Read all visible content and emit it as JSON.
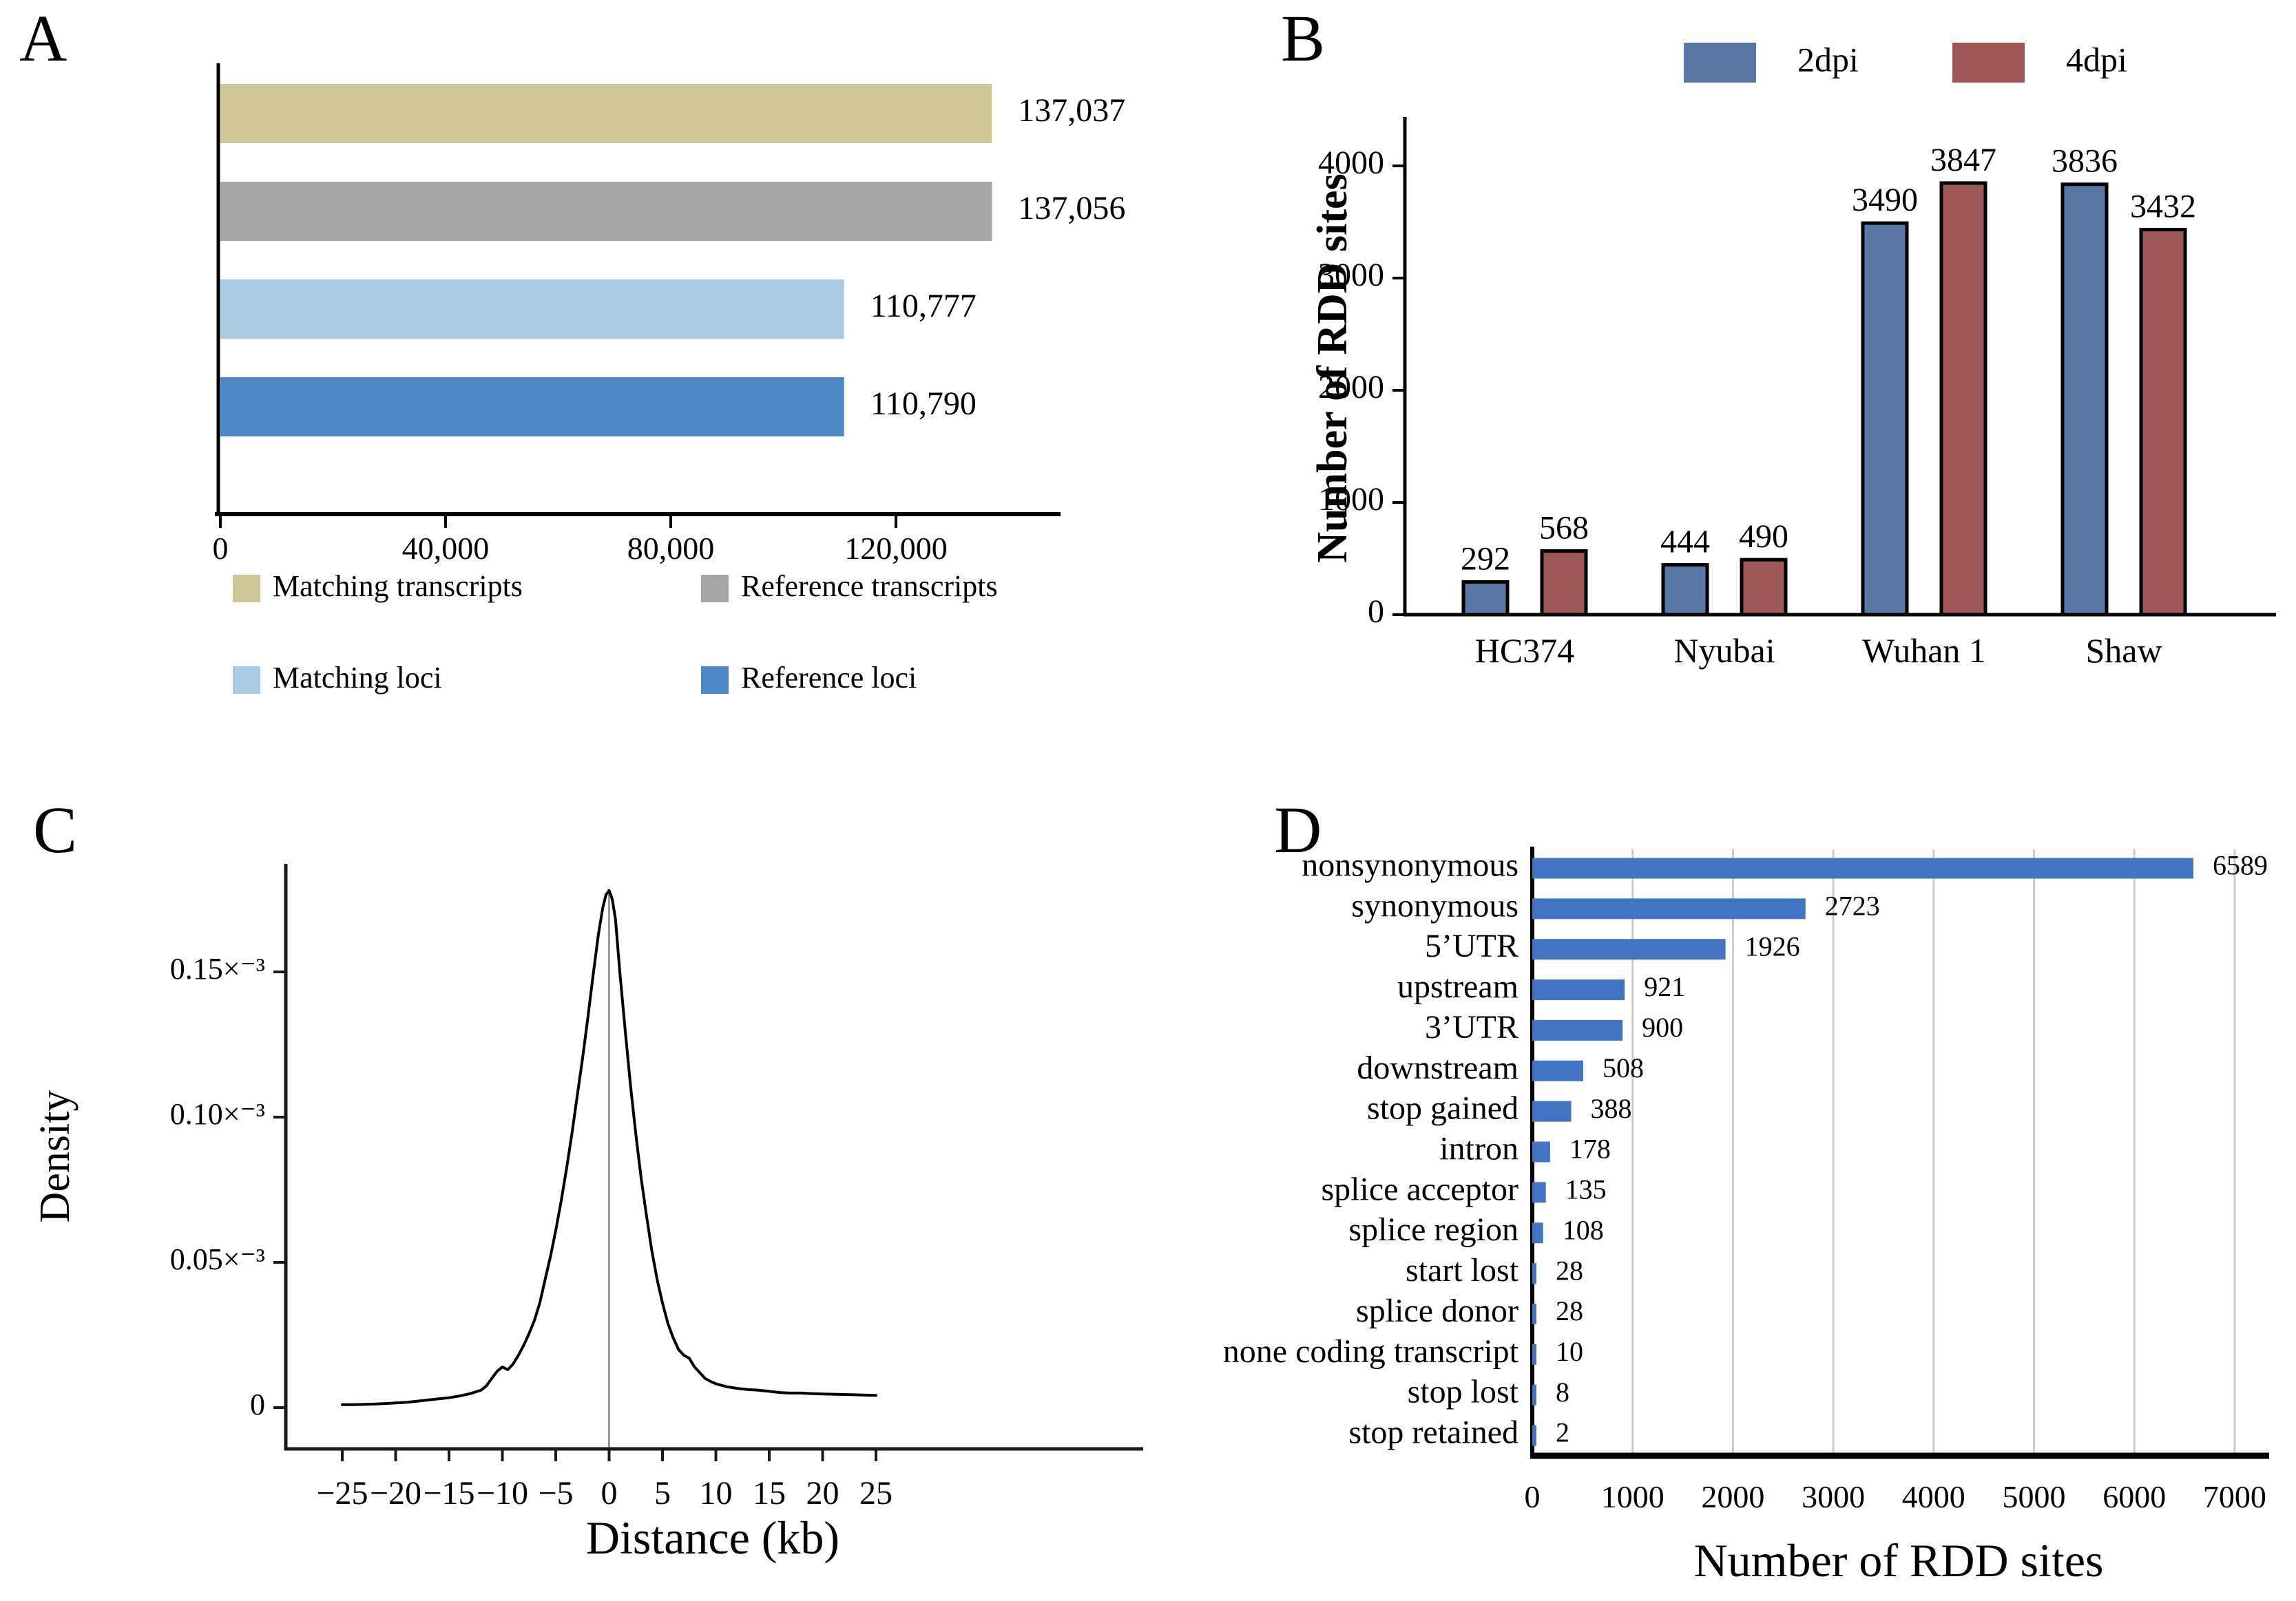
{
  "figure": {
    "panel_a": {
      "label": "A",
      "chart_data": {
        "type": "bar",
        "orientation": "horizontal",
        "categories": [
          "Matching transcripts",
          "Reference transcripts",
          "Matching loci",
          "Reference loci"
        ],
        "values": [
          137037,
          137056,
          110777,
          110790
        ],
        "value_labels": [
          "137,037",
          "137,056",
          "110,777",
          "110,790"
        ],
        "colors": [
          "#cec697",
          "#a6a6a6",
          "#a9cbe2",
          "#4e88c4"
        ],
        "x_ticks": [
          0,
          40000,
          80000,
          120000
        ],
        "x_tick_labels": [
          "0",
          "40,000",
          "80,000",
          "120,000"
        ],
        "xlim": [
          0,
          148000
        ],
        "grid": false
      },
      "legend": [
        {
          "label": "Matching transcripts",
          "color": "#cec697"
        },
        {
          "label": "Reference transcripts",
          "color": "#a6a6a6"
        },
        {
          "label": "Matching loci",
          "color": "#a9cbe2"
        },
        {
          "label": "Reference loci",
          "color": "#4e88c4"
        }
      ]
    },
    "panel_b": {
      "label": "B",
      "ylabel": "Number of RDD sites",
      "legend": [
        {
          "label": "2dpi",
          "color": "#5a78a6"
        },
        {
          "label": "4dpi",
          "color": "#9d5757"
        }
      ],
      "chart_data": {
        "type": "bar",
        "grouped": true,
        "categories": [
          "HC374",
          "Nyubai",
          "Wuhan 1",
          "Shaw"
        ],
        "series": [
          {
            "name": "2dpi",
            "color": "#5a78a6",
            "values": [
              292,
              444,
              3490,
              3836
            ]
          },
          {
            "name": "4dpi",
            "color": "#9d5757",
            "values": [
              568,
              490,
              3847,
              3432
            ]
          }
        ],
        "value_labels": {
          "2dpi": [
            "292",
            "444",
            "3490",
            "3836"
          ],
          "4dpi": [
            "568",
            "490",
            "3847",
            "3432"
          ]
        },
        "y_ticks": [
          0,
          1000,
          2000,
          3000,
          4000
        ],
        "y_tick_labels": [
          "0",
          "1000",
          "2000",
          "3000",
          "4000"
        ],
        "ylim": [
          0,
          4400
        ],
        "grid": false
      }
    },
    "panel_c": {
      "label": "C",
      "ylabel": "Density",
      "xlabel": "Distance (kb)",
      "chart_data": {
        "type": "line",
        "line_color": "#000000",
        "zero_line_color": "#9a9a9a",
        "zero_marker_x": 0,
        "xlim": [
          -25,
          25
        ],
        "x_ticks": [
          -25,
          -20,
          -15,
          -10,
          -5,
          0,
          5,
          10,
          15,
          20,
          25
        ],
        "x_tick_labels": [
          "−25",
          "−20",
          "−15",
          "−10",
          "−5",
          "0",
          "5",
          "10",
          "15",
          "20",
          "25"
        ],
        "y_tick_values": [
          0,
          0.05,
          0.1,
          0.15
        ],
        "y_tick_labels": [
          "0",
          "0.05×⁻³",
          "0.10×⁻³",
          "0.15×⁻³"
        ],
        "points": [
          [
            -25,
            0.001
          ],
          [
            -24,
            0.001
          ],
          [
            -23,
            0.0011
          ],
          [
            -22,
            0.0012
          ],
          [
            -21,
            0.0014
          ],
          [
            -20,
            0.0016
          ],
          [
            -19,
            0.0018
          ],
          [
            -18,
            0.0022
          ],
          [
            -17,
            0.0026
          ],
          [
            -16,
            0.003
          ],
          [
            -15,
            0.0034
          ],
          [
            -14,
            0.004
          ],
          [
            -13,
            0.0048
          ],
          [
            -12,
            0.006
          ],
          [
            -11.5,
            0.0075
          ],
          [
            -11,
            0.01
          ],
          [
            -10.5,
            0.0125
          ],
          [
            -10,
            0.014
          ],
          [
            -9.5,
            0.013
          ],
          [
            -9,
            0.015
          ],
          [
            -8.5,
            0.018
          ],
          [
            -8,
            0.0215
          ],
          [
            -7.5,
            0.0255
          ],
          [
            -7,
            0.03
          ],
          [
            -6.5,
            0.036
          ],
          [
            -6,
            0.044
          ],
          [
            -5.5,
            0.052
          ],
          [
            -5,
            0.061
          ],
          [
            -4.5,
            0.071
          ],
          [
            -4,
            0.082
          ],
          [
            -3.5,
            0.094
          ],
          [
            -3,
            0.107
          ],
          [
            -2.5,
            0.12
          ],
          [
            -2,
            0.134
          ],
          [
            -1.5,
            0.149
          ],
          [
            -1,
            0.163
          ],
          [
            -0.6,
            0.172
          ],
          [
            -0.3,
            0.1765
          ],
          [
            0,
            0.178
          ],
          [
            0.3,
            0.175
          ],
          [
            0.6,
            0.168
          ],
          [
            1,
            0.15
          ],
          [
            1.5,
            0.13
          ],
          [
            2,
            0.111
          ],
          [
            2.5,
            0.094
          ],
          [
            3,
            0.079
          ],
          [
            3.5,
            0.066
          ],
          [
            4,
            0.054
          ],
          [
            4.5,
            0.044
          ],
          [
            5,
            0.036
          ],
          [
            5.5,
            0.029
          ],
          [
            6,
            0.024
          ],
          [
            6.5,
            0.02
          ],
          [
            7,
            0.018
          ],
          [
            7.5,
            0.017
          ],
          [
            8,
            0.014
          ],
          [
            8.5,
            0.012
          ],
          [
            9,
            0.01
          ],
          [
            9.5,
            0.009
          ],
          [
            10,
            0.0082
          ],
          [
            11,
            0.0072
          ],
          [
            12,
            0.0066
          ],
          [
            13,
            0.0062
          ],
          [
            14,
            0.006
          ],
          [
            15,
            0.0056
          ],
          [
            16,
            0.0052
          ],
          [
            17,
            0.005
          ],
          [
            18,
            0.005
          ],
          [
            19,
            0.0048
          ],
          [
            20,
            0.0047
          ],
          [
            21,
            0.0046
          ],
          [
            22,
            0.0045
          ],
          [
            23,
            0.0044
          ],
          [
            24,
            0.0043
          ],
          [
            25,
            0.0042
          ]
        ]
      }
    },
    "panel_d": {
      "label": "D",
      "xlabel": "Number of RDD sites",
      "chart_data": {
        "type": "bar",
        "orientation": "horizontal",
        "bar_color": "#4373c3",
        "grid_color": "#cccccc",
        "categories": [
          "nonsynonymous",
          "synonymous",
          "5’UTR",
          "upstream",
          "3’UTR",
          "downstream",
          "stop gained",
          "intron",
          "splice acceptor",
          "splice region",
          "start lost",
          "splice donor",
          "none coding transcript",
          "stop lost",
          "stop retained"
        ],
        "values": [
          6589,
          2723,
          1926,
          921,
          900,
          508,
          388,
          178,
          135,
          108,
          28,
          28,
          10,
          8,
          2
        ],
        "value_labels": [
          "6589",
          "2723",
          "1926",
          "921",
          "900",
          "508",
          "388",
          "178",
          "135",
          "108",
          "28",
          "28",
          "10",
          "8",
          "2"
        ],
        "x_ticks": [
          0,
          1000,
          2000,
          3000,
          4000,
          5000,
          6000,
          7000
        ],
        "x_tick_labels": [
          "0",
          "1000",
          "2000",
          "3000",
          "4000",
          "5000",
          "6000",
          "7000"
        ],
        "xlim": [
          0,
          7300
        ],
        "grid": true
      }
    }
  }
}
